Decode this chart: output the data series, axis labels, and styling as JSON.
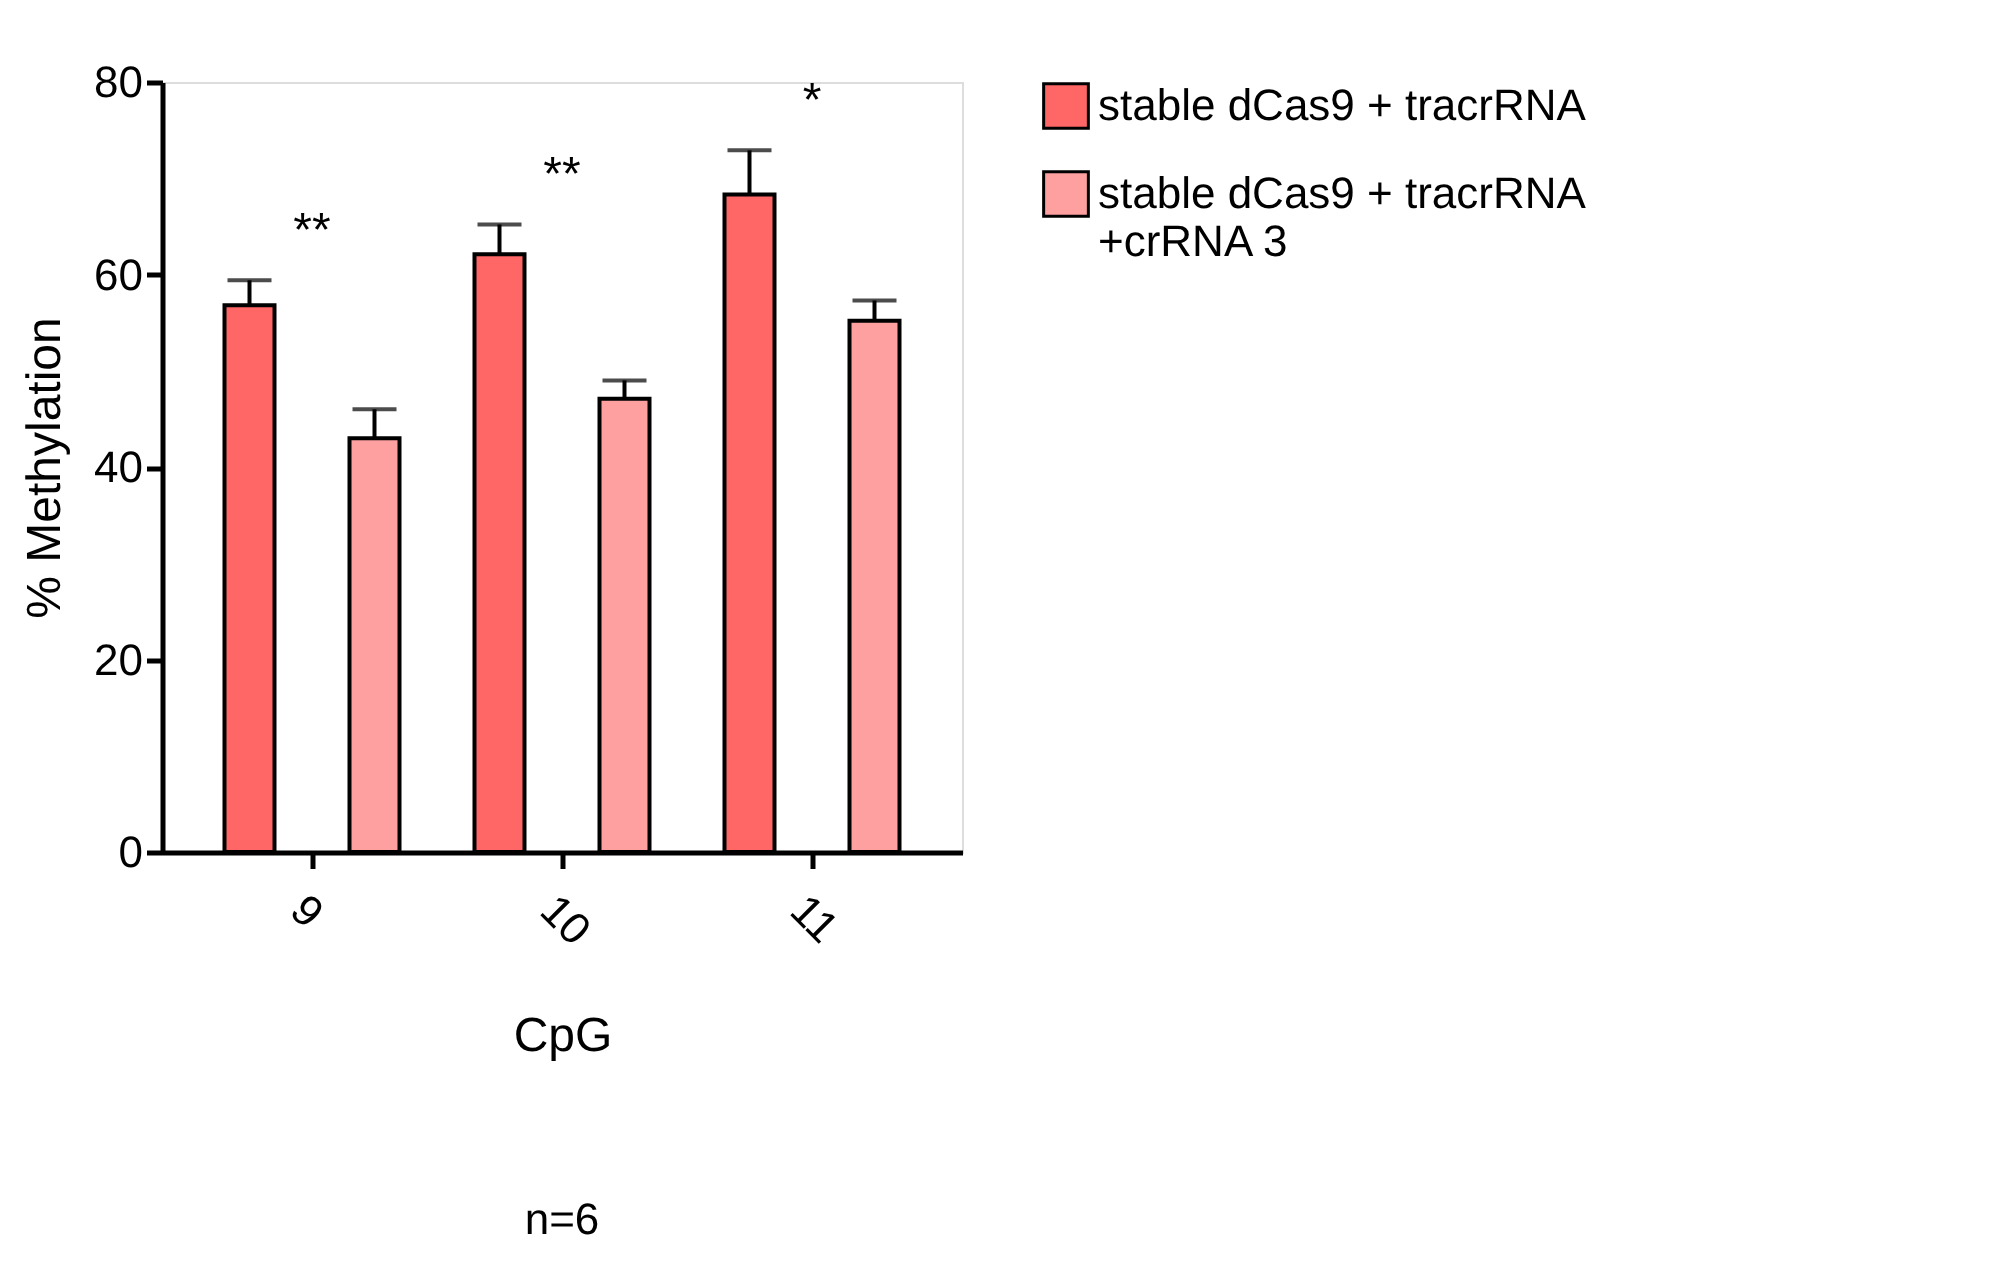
{
  "chart_data": {
    "type": "bar",
    "xlabel": "CpG",
    "ylabel": "% Methylation",
    "categories": [
      "9",
      "10",
      "11"
    ],
    "series": [
      {
        "name": "stable dCas9 + tracrRNA",
        "color": "#ff6666",
        "values": [
          56.8,
          62.1,
          68.3
        ],
        "errors": [
          [
            56.8,
            59.4
          ],
          [
            62.1,
            65.2
          ],
          [
            68.3,
            72.9
          ]
        ]
      },
      {
        "name": "stable dCas9 + tracrRNA\n+crRNA 3",
        "color": "#ffa0a0",
        "values": [
          43.0,
          47.1,
          55.2
        ],
        "errors": [
          [
            43.0,
            46.0
          ],
          [
            47.1,
            49.0
          ],
          [
            55.2,
            57.3
          ]
        ]
      }
    ],
    "ylim": [
      0,
      80
    ],
    "yticks": [
      0,
      20,
      40,
      60,
      80
    ],
    "grid": false,
    "legend": "right",
    "annotations": [
      "**",
      "**",
      "*",
      "n=6"
    ]
  }
}
